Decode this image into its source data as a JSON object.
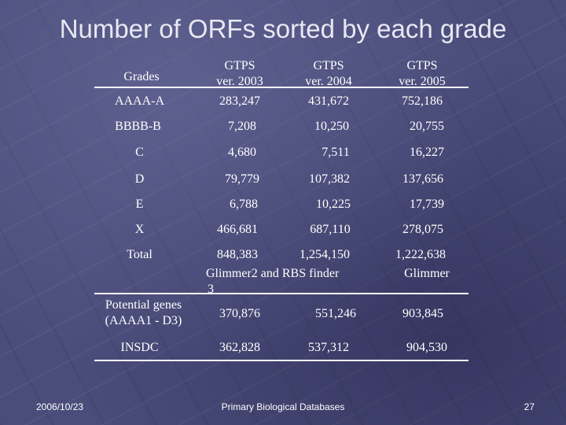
{
  "title": "Number of ORFs sorted by each grade",
  "table": {
    "headers": {
      "grades": "Grades",
      "col1": [
        "GTPS",
        "ver. 2003"
      ],
      "col2": [
        "GTPS",
        "ver. 2004"
      ],
      "col3": [
        "GTPS",
        "ver. 2005"
      ]
    },
    "rows": [
      {
        "grade": "AAAA-A",
        "v2003": "283,247",
        "v2004": "431,672",
        "v2005": "752,186"
      },
      {
        "grade": "BBBB-B",
        "v2003": "7,208",
        "v2004": "10,250",
        "v2005": "20,755"
      },
      {
        "grade": "C",
        "v2003": "4,680",
        "v2004": "7,511",
        "v2005": "16,227"
      },
      {
        "grade": "D",
        "v2003": "79,779",
        "v2004": "107,382",
        "v2005": "137,656"
      },
      {
        "grade": "E",
        "v2003": "6,788",
        "v2004": "10,225",
        "v2005": "17,739"
      },
      {
        "grade": "X",
        "v2003": "466,681",
        "v2004": "687,110",
        "v2005": "278,075"
      }
    ],
    "total": {
      "label": "Total",
      "v2003": "848,383",
      "v2004": "1,254,150",
      "v2005": "1,222,638"
    },
    "subheaders": {
      "col12": "Glimmer2 and RBS finder",
      "col12_wrap": "3",
      "col3": "Glimmer"
    },
    "potential": {
      "label1": "Potential genes",
      "label2": "(AAAA1 - D3)",
      "v2003": "370,876",
      "v2004": "551,246",
      "v2005": "903,845"
    },
    "insdc": {
      "label": "INSDC",
      "v2003": "362,828",
      "v2004": "537,312",
      "v2005": "904,530"
    }
  },
  "footer": {
    "date": "2006/10/23",
    "center": "Primary Biological Databases",
    "page": "27"
  }
}
